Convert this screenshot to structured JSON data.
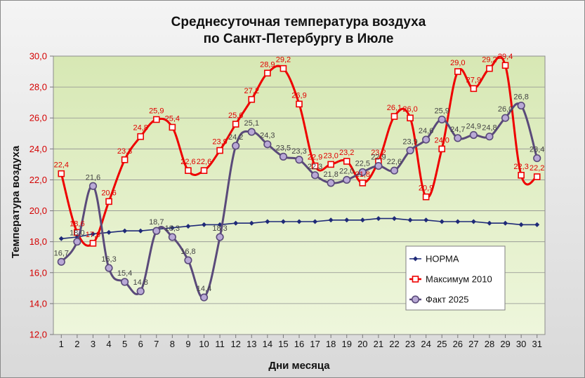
{
  "chart_data": {
    "type": "line",
    "title_line1": "Среднесуточная температура воздуха",
    "title_line2": "по Санкт-Петербургу в Июле",
    "xlabel": "Дни месяца",
    "ylabel": "Температура  воздуха",
    "ylim": [
      12.0,
      30.0
    ],
    "ytick_labels": [
      "12,0",
      "14,0",
      "16,0",
      "18,0",
      "20,0",
      "22,0",
      "24,0",
      "26,0",
      "28,0",
      "30,0"
    ],
    "ytick_values": [
      12,
      14,
      16,
      18,
      20,
      22,
      24,
      26,
      28,
      30
    ],
    "categories": [
      "1",
      "2",
      "3",
      "4",
      "5",
      "6",
      "7",
      "8",
      "9",
      "10",
      "11",
      "12",
      "13",
      "14",
      "15",
      "16",
      "17",
      "18",
      "19",
      "20",
      "21",
      "22",
      "23",
      "24",
      "25",
      "26",
      "27",
      "28",
      "29",
      "30",
      "31"
    ],
    "grid": "horizontal",
    "legend_position": "lower-right",
    "series": [
      {
        "name": "НОРМА",
        "color": "#1f2a78",
        "marker": "diamond",
        "values": [
          18.2,
          18.3,
          18.5,
          18.6,
          18.7,
          18.7,
          18.8,
          18.9,
          19.0,
          19.1,
          19.1,
          19.2,
          19.2,
          19.3,
          19.3,
          19.3,
          19.3,
          19.4,
          19.4,
          19.4,
          19.5,
          19.5,
          19.4,
          19.4,
          19.3,
          19.3,
          19.3,
          19.2,
          19.2,
          19.1,
          19.1
        ],
        "labels": []
      },
      {
        "name": "Максимум 2010",
        "color": "#ee0000",
        "marker": "square",
        "values": [
          22.4,
          18.6,
          17.9,
          20.6,
          23.3,
          24.8,
          25.9,
          25.4,
          22.6,
          22.6,
          23.9,
          25.6,
          27.2,
          28.9,
          29.2,
          26.9,
          22.9,
          23.0,
          23.2,
          21.8,
          23.2,
          26.1,
          26.0,
          20.9,
          24.0,
          29.0,
          27.9,
          29.2,
          29.4,
          22.3,
          22.2
        ],
        "labels": [
          "22,4",
          "18,6",
          "17,9",
          "20,6",
          "23,3",
          "24,8",
          "25,9",
          "25,4",
          "22,6",
          "22,6",
          "23,9",
          "25,6",
          "27,2",
          "28,9",
          "29,2",
          "26,9",
          "22,9",
          "23,0",
          "23,2",
          "21,8",
          "23,2",
          "26,1",
          "26,0",
          "20,9",
          "24,0",
          "29,0",
          "27,9",
          "29,2",
          "29,4",
          "22,3",
          "22,2"
        ]
      },
      {
        "name": "Факт 2025",
        "color": "#5a4a7a",
        "marker": "circle",
        "values": [
          16.7,
          18.0,
          21.6,
          16.3,
          15.4,
          14.8,
          18.7,
          18.3,
          16.8,
          14.4,
          18.3,
          24.2,
          25.1,
          24.3,
          23.5,
          23.3,
          22.3,
          21.8,
          22.0,
          22.5,
          22.9,
          22.6,
          23.9,
          24.6,
          25.9,
          24.7,
          24.9,
          24.8,
          26.0,
          26.8,
          23.4
        ],
        "labels": [
          "16,7",
          "18,0",
          "21,6",
          "16,3",
          "15,4",
          "14,8",
          "18,7",
          "18,3",
          "16,8",
          "14,4",
          "18,3",
          "24,2",
          "25,1",
          "24,3",
          "23,5",
          "23,3",
          "22,3",
          "21,8",
          "22,0",
          "22,5",
          "22,9",
          "22,6",
          "23,9",
          "24,6",
          "25,9",
          "24,7",
          "24,9",
          "24,8",
          "26,0",
          "26,8",
          "23,4"
        ]
      }
    ]
  }
}
